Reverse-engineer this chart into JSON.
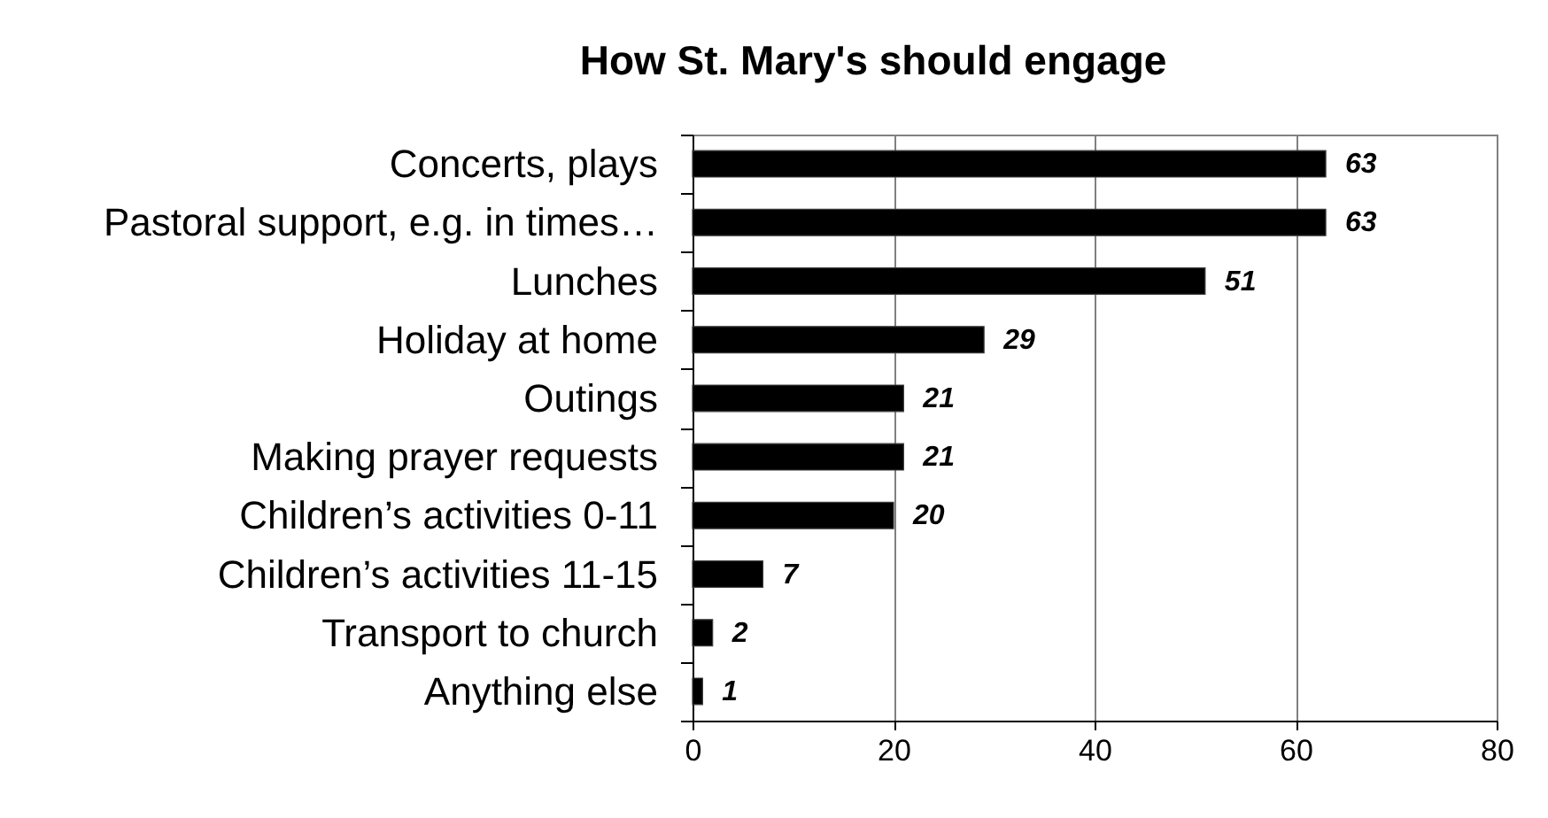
{
  "chart_data": {
    "type": "bar",
    "orientation": "horizontal",
    "title": "How St. Mary's should engage",
    "categories": [
      "Concerts, plays",
      "Pastoral support, e.g. in times…",
      "Lunches",
      "Holiday at home",
      "Outings",
      "Making prayer requests",
      "Children’s activities 0-11",
      "Children’s activities 11-15",
      "Transport to church",
      "Anything else"
    ],
    "values": [
      63,
      63,
      51,
      29,
      21,
      21,
      20,
      7,
      2,
      1
    ],
    "color": "#000000",
    "xlim": [
      0,
      80
    ],
    "xticks": [
      0,
      20,
      40,
      60,
      80
    ],
    "grid": "x",
    "data_labels": true
  }
}
